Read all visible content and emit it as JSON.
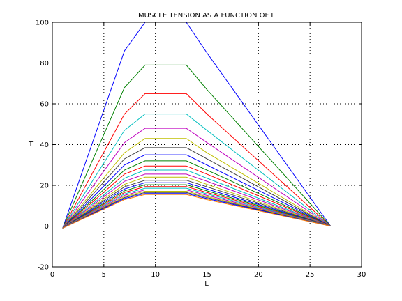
{
  "chart_data": {
    "type": "line",
    "title": "MUSCLE TENSION AS A FUNCTION OF L",
    "xlabel": "L",
    "ylabel": "T",
    "xlim": [
      0,
      30
    ],
    "ylim": [
      -20,
      100
    ],
    "xticks": [
      "0",
      "5",
      "10",
      "15",
      "20",
      "25",
      "30"
    ],
    "yticks": [
      "-20",
      "0",
      "20",
      "40",
      "60",
      "80",
      "100"
    ],
    "grid": true,
    "x": [
      1,
      7,
      9,
      13,
      15,
      27
    ],
    "series": [
      {
        "color": "#0000ff",
        "values": [
          -1,
          86,
          100,
          100,
          85,
          0
        ]
      },
      {
        "color": "#008000",
        "values": [
          -1,
          68,
          79,
          79,
          67,
          0
        ]
      },
      {
        "color": "#ff0000",
        "values": [
          -1,
          55,
          65,
          65,
          55,
          0
        ]
      },
      {
        "color": "#00bfbf",
        "values": [
          -1,
          47,
          55,
          55,
          47,
          0
        ]
      },
      {
        "color": "#bf00bf",
        "values": [
          -1,
          41,
          48,
          48,
          41,
          0
        ]
      },
      {
        "color": "#bfbf00",
        "values": [
          -1,
          36,
          43,
          43,
          36,
          0
        ]
      },
      {
        "color": "#404040",
        "values": [
          -1,
          33,
          38.5,
          38.5,
          33,
          0
        ]
      },
      {
        "color": "#0000ff",
        "values": [
          -1,
          30,
          35,
          35,
          30,
          0
        ]
      },
      {
        "color": "#008000",
        "values": [
          -1,
          27.5,
          32,
          32,
          27.5,
          0
        ]
      },
      {
        "color": "#ff0000",
        "values": [
          -1,
          25.5,
          29.5,
          29.5,
          25.5,
          0
        ]
      },
      {
        "color": "#00bfbf",
        "values": [
          -1,
          23.5,
          27.5,
          27.5,
          23.5,
          0
        ]
      },
      {
        "color": "#bf00bf",
        "values": [
          -1,
          22,
          25.5,
          25.5,
          22,
          0
        ]
      },
      {
        "color": "#bfbf00",
        "values": [
          -1,
          20.5,
          24,
          24,
          20.5,
          0
        ]
      },
      {
        "color": "#404040",
        "values": [
          -1,
          19.3,
          22.5,
          22.5,
          19.3,
          0
        ]
      },
      {
        "color": "#0000ff",
        "values": [
          -1,
          18.2,
          21.3,
          21.3,
          18.2,
          0
        ]
      },
      {
        "color": "#008000",
        "values": [
          -1,
          17.3,
          20.3,
          20.3,
          17.3,
          0
        ]
      },
      {
        "color": "#ff0000",
        "values": [
          -1,
          16.5,
          19.4,
          19.4,
          16.5,
          0
        ]
      },
      {
        "color": "#00bfbf",
        "values": [
          -1,
          15.8,
          18.6,
          18.6,
          15.8,
          0
        ]
      },
      {
        "color": "#bf00bf",
        "values": [
          -1,
          15.1,
          17.8,
          17.8,
          15.1,
          0
        ]
      },
      {
        "color": "#bfbf00",
        "values": [
          -1,
          14.5,
          17.1,
          17.1,
          14.5,
          0
        ]
      },
      {
        "color": "#404040",
        "values": [
          -1,
          14,
          16.5,
          16.5,
          14,
          0
        ]
      },
      {
        "color": "#0000ff",
        "values": [
          -1,
          13.5,
          16,
          16,
          13.5,
          0
        ]
      },
      {
        "color": "#ff8000",
        "values": [
          -1,
          13,
          15.5,
          15.5,
          13,
          0
        ]
      }
    ]
  }
}
